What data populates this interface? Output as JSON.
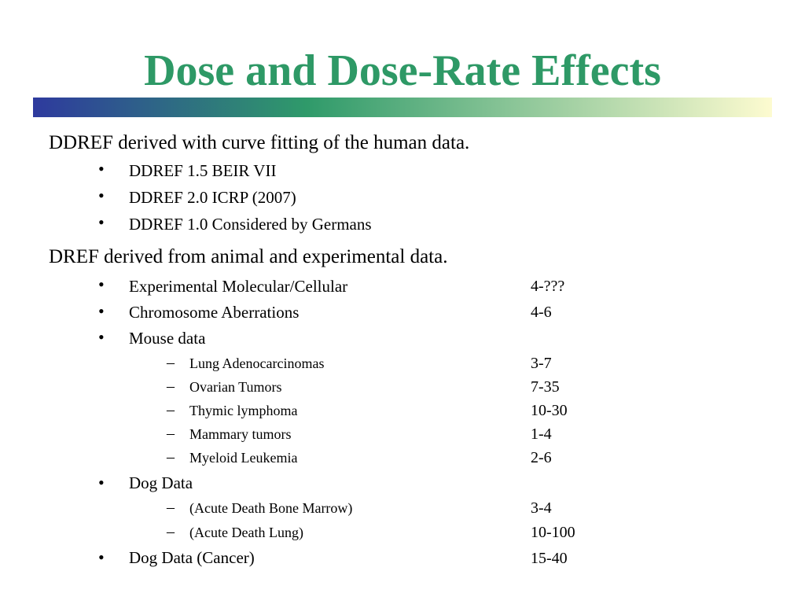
{
  "slide": {
    "title": "Dose and Dose-Rate Effects",
    "title_color": "#2e9966",
    "bar_gradient": [
      "#2e3a9e",
      "#2f9a6a",
      "#fdfbd0"
    ]
  },
  "section_human": {
    "heading": "DDREF derived with curve fitting of the human data.",
    "items": [
      "DDREF  1.5  BEIR VII",
      "DDREF  2.0  ICRP (2007)",
      "DDREF 1.0 Considered by Germans"
    ]
  },
  "section_animal": {
    "heading": "DREF derived from animal and experimental data.",
    "items": [
      {
        "label": "Experimental Molecular/Cellular",
        "value": "4-???"
      },
      {
        "label": "Chromosome Aberrations",
        "value": "4-6"
      },
      {
        "label": "Mouse data"
      },
      {
        "label": "Dog Data"
      },
      {
        "label": "Dog Data (Cancer)",
        "value": "15-40"
      }
    ],
    "mouse_subitems": [
      {
        "label": "Lung Adenocarcinomas",
        "value": "3-7"
      },
      {
        "label": "Ovarian Tumors",
        "value": "7-35"
      },
      {
        "label": "Thymic lymphoma",
        "value": "10-30"
      },
      {
        "label": "Mammary tumors",
        "value": "1-4"
      },
      {
        "label": "Myeloid Leukemia",
        "value": "2-6"
      }
    ],
    "dog_subitems": [
      {
        "label": "(Acute Death Bone Marrow)",
        "value": "3-4"
      },
      {
        "label": "(Acute Death Lung)",
        "value": "10-100"
      }
    ]
  },
  "glyphs": {
    "bullet": "•",
    "dash": "–"
  }
}
